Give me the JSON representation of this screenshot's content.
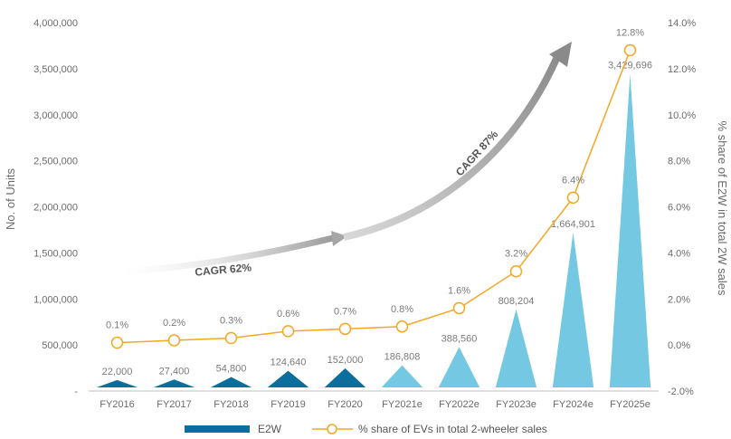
{
  "chart_data": {
    "type": "bar",
    "categories": [
      "FY2016",
      "FY2017",
      "FY2018",
      "FY2019",
      "FY2020",
      "FY2021e",
      "FY2022e",
      "FY2023e",
      "FY2024e",
      "FY2025e"
    ],
    "series": [
      {
        "name": "E2W",
        "axis": "left",
        "values": [
          22000,
          27400,
          54800,
          124640,
          152000,
          186808,
          388560,
          808204,
          1664901,
          3429696
        ],
        "labels": [
          "22,000",
          "27,400",
          "54,800",
          "124,640",
          "152,000",
          "186,808",
          "388,560",
          "808,204",
          "1,664,901",
          "3,429,696"
        ],
        "colors": [
          "#0b6e9c",
          "#0b6e9c",
          "#0b6e9c",
          "#0b6e9c",
          "#0b6e9c",
          "#74c8e2",
          "#74c8e2",
          "#74c8e2",
          "#74c8e2",
          "#74c8e2"
        ]
      },
      {
        "name": "% share of EVs in total 2-wheeler sales",
        "axis": "right",
        "type": "line",
        "values": [
          0.1,
          0.2,
          0.3,
          0.6,
          0.7,
          0.8,
          1.6,
          3.2,
          6.4,
          12.8
        ],
        "labels": [
          "0.1%",
          "0.2%",
          "0.3%",
          "0.6%",
          "0.7%",
          "0.8%",
          "1.6%",
          "3.2%",
          "6.4%",
          "12.8%"
        ],
        "color": "#f5a623"
      }
    ],
    "ylabel": "No. of Units",
    "y2label": "% share of E2W in total 2W sales",
    "ylim": [
      0,
      4000000
    ],
    "y2lim": [
      -2,
      14
    ],
    "yticks": [
      "-",
      "500,000",
      "1,000,000",
      "1,500,000",
      "2,000,000",
      "2,500,000",
      "3,000,000",
      "3,500,000",
      "4,000,000"
    ],
    "y2ticks": [
      "-2.0%",
      "0.0%",
      "2.0%",
      "4.0%",
      "6.0%",
      "8.0%",
      "10.0%",
      "12.0%",
      "14.0%"
    ],
    "annotations": [
      "CAGR 62%",
      "CAGR 87%"
    ],
    "grid": false,
    "legend": "bottom"
  }
}
